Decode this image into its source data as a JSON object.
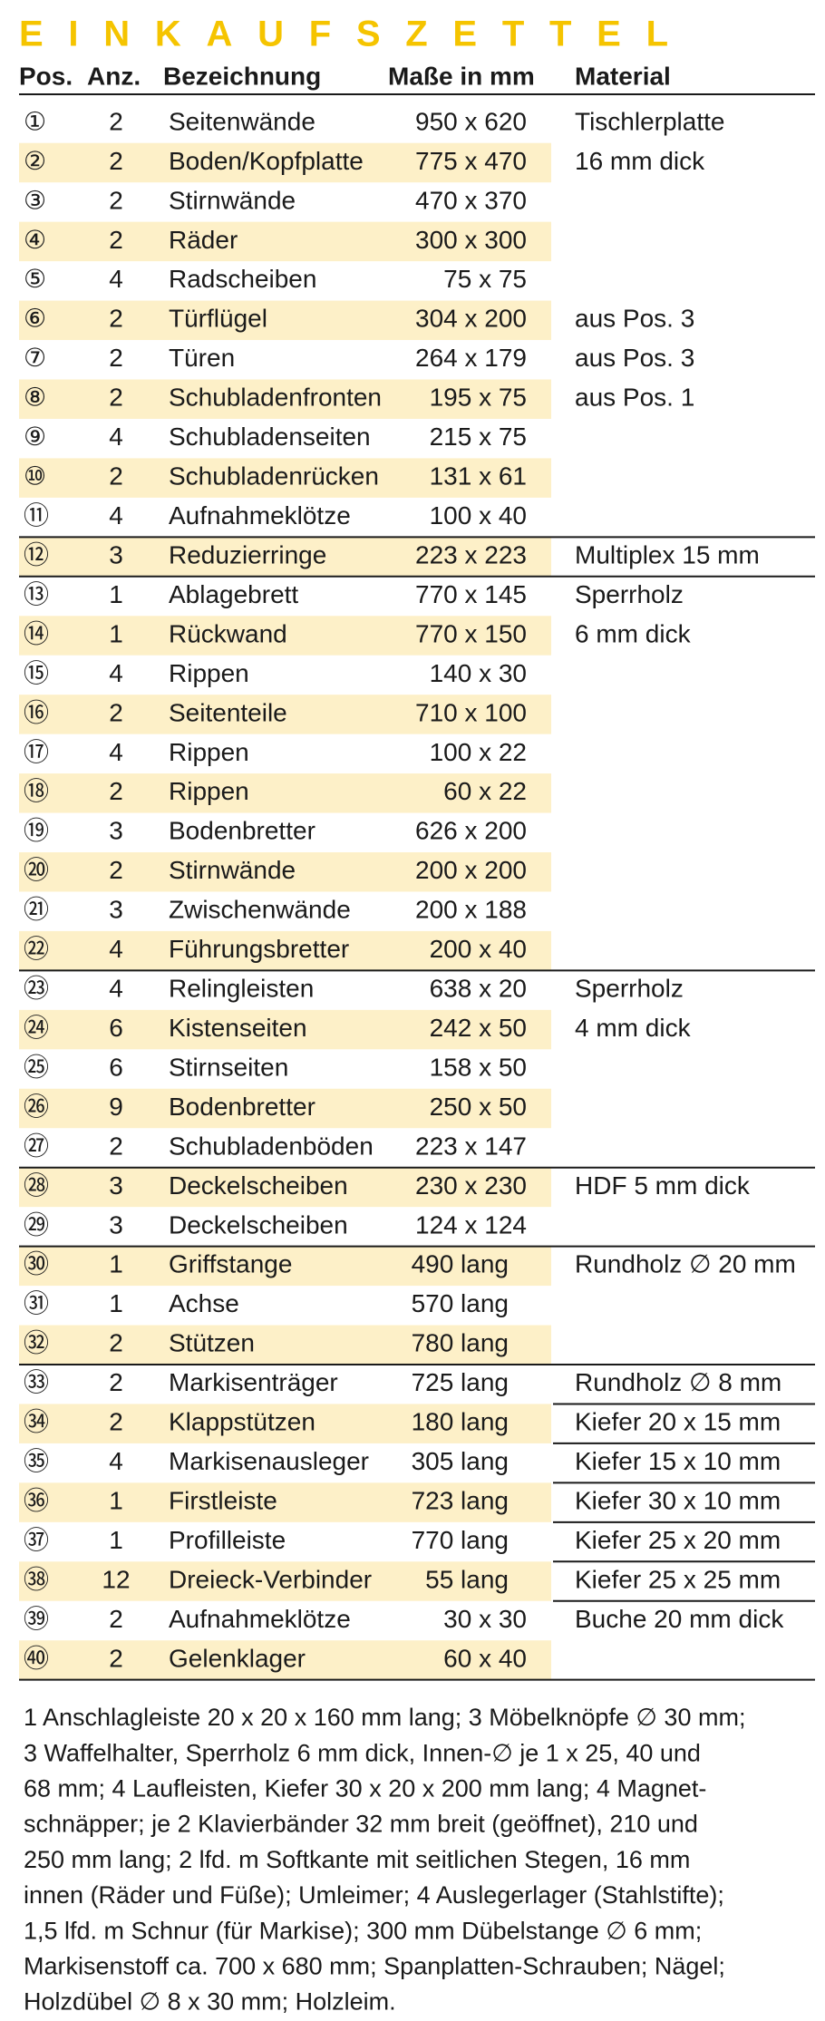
{
  "title": "EINKAUFSZETTEL",
  "header": {
    "pos": "Pos.",
    "qty": "Anz.",
    "name": "Bezeichnung",
    "size": "Maße in mm",
    "material": "Material"
  },
  "rows": [
    {
      "pos": "①",
      "qty": "2",
      "name": "Seitenwände",
      "size": "950 x 620",
      "material": "Tischlerplatte"
    },
    {
      "pos": "②",
      "qty": "2",
      "name": "Boden/Kopfplatte",
      "size": "775 x 470",
      "material": "16 mm dick"
    },
    {
      "pos": "③",
      "qty": "2",
      "name": "Stirnwände",
      "size": "470 x 370"
    },
    {
      "pos": "④",
      "qty": "2",
      "name": "Räder",
      "size": "300 x 300"
    },
    {
      "pos": "⑤",
      "qty": "4",
      "name": "Radscheiben",
      "size": "75 x 75"
    },
    {
      "pos": "⑥",
      "qty": "2",
      "name": "Türflügel",
      "size": "304 x 200",
      "material": "aus Pos. 3"
    },
    {
      "pos": "⑦",
      "qty": "2",
      "name": "Türen",
      "size": "264 x 179",
      "material": "aus Pos. 3"
    },
    {
      "pos": "⑧",
      "qty": "2",
      "name": "Schubladenfronten",
      "size": "195 x 75",
      "material": "aus Pos. 1"
    },
    {
      "pos": "⑨",
      "qty": "4",
      "name": "Schubladenseiten",
      "size": "215 x 75"
    },
    {
      "pos": "⑩",
      "qty": "2",
      "name": "Schubladenrücken",
      "size": "131 x 61"
    },
    {
      "pos": "⑪",
      "qty": "4",
      "name": "Aufnahmeklötze",
      "size": "100 x 40"
    },
    {
      "pos": "⑫",
      "qty": "3",
      "name": "Reduzierringe",
      "size": "223 x 223",
      "material": "Multiplex 15 mm"
    },
    {
      "pos": "⑬",
      "qty": "1",
      "name": "Ablagebrett",
      "size": "770 x 145",
      "material": "Sperrholz"
    },
    {
      "pos": "⑭",
      "qty": "1",
      "name": "Rückwand",
      "size": "770 x 150",
      "material": "6 mm dick"
    },
    {
      "pos": "⑮",
      "qty": "4",
      "name": "Rippen",
      "size": "140 x 30"
    },
    {
      "pos": "⑯",
      "qty": "2",
      "name": "Seitenteile",
      "size": "710 x 100"
    },
    {
      "pos": "⑰",
      "qty": "4",
      "name": "Rippen",
      "size": "100 x 22"
    },
    {
      "pos": "⑱",
      "qty": "2",
      "name": "Rippen",
      "size": "60 x 22"
    },
    {
      "pos": "⑲",
      "qty": "3",
      "name": "Bodenbretter",
      "size": "626 x 200"
    },
    {
      "pos": "⑳",
      "qty": "2",
      "name": "Stirnwände",
      "size": "200 x 200"
    },
    {
      "pos": "㉑",
      "qty": "3",
      "name": "Zwischenwände",
      "size": "200 x 188"
    },
    {
      "pos": "㉒",
      "qty": "4",
      "name": "Führungsbretter",
      "size": "200 x 40"
    },
    {
      "pos": "㉓",
      "qty": "4",
      "name": "Relingleisten",
      "size": "638 x 20",
      "material": "Sperrholz"
    },
    {
      "pos": "㉔",
      "qty": "6",
      "name": "Kistenseiten",
      "size": "242 x 50",
      "material": "4 mm dick"
    },
    {
      "pos": "㉕",
      "qty": "6",
      "name": "Stirnseiten",
      "size": "158 x 50"
    },
    {
      "pos": "㉖",
      "qty": "9",
      "name": "Bodenbretter",
      "size": "250 x 50"
    },
    {
      "pos": "㉗",
      "qty": "2",
      "name": "Schubladenböden",
      "size": "223 x 147"
    },
    {
      "pos": "㉘",
      "qty": "3",
      "name": "Deckelscheiben",
      "size": "230 x 230",
      "material": "HDF 5 mm dick"
    },
    {
      "pos": "㉙",
      "qty": "3",
      "name": "Deckelscheiben",
      "size": "124 x 124"
    },
    {
      "pos": "㉚",
      "qty": "1",
      "name": "Griffstange",
      "size": "490 lang",
      "material": "Rundholz ∅ 20 mm"
    },
    {
      "pos": "㉛",
      "qty": "1",
      "name": "Achse",
      "size": "570 lang"
    },
    {
      "pos": "㉜",
      "qty": "2",
      "name": "Stützen",
      "size": "780 lang"
    },
    {
      "pos": "㉝",
      "qty": "2",
      "name": "Markisenträger",
      "size": "725 lang",
      "material": "Rundholz ∅ 8 mm"
    },
    {
      "pos": "㉞",
      "qty": "2",
      "name": "Klappstützen",
      "size": "180 lang",
      "material": "Kiefer 20 x 15 mm"
    },
    {
      "pos": "㉟",
      "qty": "4",
      "name": "Markisenausleger",
      "size": "305 lang",
      "material": "Kiefer 15 x 10 mm"
    },
    {
      "pos": "㊱",
      "qty": "1",
      "name": "Firstleiste",
      "size": "723 lang",
      "material": "Kiefer 30 x 10 mm"
    },
    {
      "pos": "㊲",
      "qty": "1",
      "name": "Profilleiste",
      "size": "770 lang",
      "material": "Kiefer 25 x 20 mm"
    },
    {
      "pos": "㊳",
      "qty": "12",
      "name": "Dreieck-Verbinder",
      "size": "55 lang",
      "material": "Kiefer 25 x 25 mm"
    },
    {
      "pos": "㊴",
      "qty": "2",
      "name": "Aufnahmeklötze",
      "size": "30 x 30",
      "material": "Buche 20 mm dick"
    },
    {
      "pos": "㊵",
      "qty": "2",
      "name": "Gelenklager",
      "size": "60 x 40"
    }
  ],
  "footer": [
    "1 Anschlagleiste 20 x 20 x 160 mm lang; 3 Möbelknöpfe ∅ 30 mm;",
    "3 Waffelhalter, Sperrholz 6 mm dick, Innen-∅ je 1 x 25, 40 und",
    "68 mm; 4 Laufleisten, Kiefer 30 x 20 x 200 mm lang; 4 Magnet-",
    "schnäpper; je 2 Klavierbänder 32 mm breit (geöffnet), 210 und",
    "250 mm lang; 2 lfd. m Softkante mit seitlichen Stegen, 16 mm",
    "innen (Räder und Füße); Umleimer; 4 Auslegerlager (Stahlstifte);",
    "1,5 lfd. m Schnur (für Markise); 300 mm Dübelstange ∅ 6 mm;",
    "Markisenstoff ca. 700 x 680 mm; Spanplatten-Schrauben; Nägel;",
    "Holzdübel ∅ 8 x 30 mm; Holzleim."
  ]
}
